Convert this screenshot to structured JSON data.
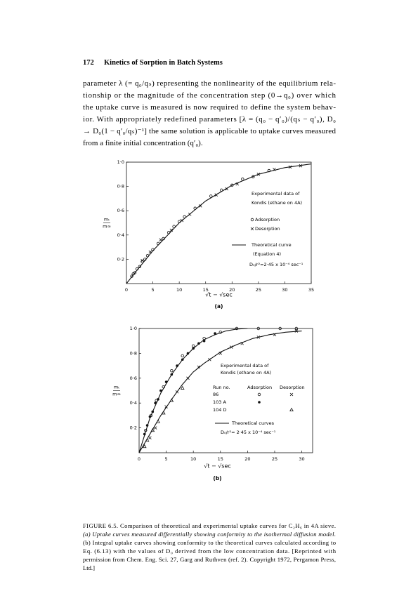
{
  "header": {
    "page_number": "172",
    "running_title": "Kinetics of Sorption in Batch Systems"
  },
  "body": {
    "lines": [
      "parameter λ (= q₀/qₛ) representing the nonlinearity of the equilibrium rela-",
      "tionship or the magnitude of the concentration step (0→q₀) over which",
      "the uptake curve is measured is now required to define the system behav-",
      "ior. With appropriately redefined parameters [λ = (q₀ − q′₀)/(qₛ − q′₀), D₀",
      "→ D₀(1 − q′₀/qₛ)⁻¹] the same solution is applicable to uptake curves measured",
      "from a finite initial concentration (q′₀)."
    ]
  },
  "chart_data": [
    {
      "type": "scatter",
      "panel_label": "(a)",
      "x_label": "√t − √sec",
      "y_label": {
        "top": "mₜ",
        "bottom": "m∞"
      },
      "xlim": [
        0,
        35
      ],
      "ylim": [
        0,
        1.0
      ],
      "xticks": [
        0,
        5,
        10,
        15,
        20,
        25,
        30,
        35
      ],
      "yticks": [
        {
          "value": 0.2,
          "label": "0·2"
        },
        {
          "value": 0.4,
          "label": "0·4"
        },
        {
          "value": 0.6,
          "label": "0·6"
        },
        {
          "value": 0.8,
          "label": "0·8"
        },
        {
          "value": 1.0,
          "label": "1·0"
        }
      ],
      "series": [
        {
          "marker": "circle",
          "x": [
            1,
            1.3,
            1.6,
            2,
            2.5,
            3,
            3.5,
            4,
            5,
            6,
            7,
            8,
            9,
            10,
            11,
            13,
            16,
            18,
            20,
            22,
            24,
            27
          ],
          "values": [
            0.06,
            0.08,
            0.09,
            0.12,
            0.14,
            0.18,
            0.2,
            0.23,
            0.28,
            0.33,
            0.37,
            0.42,
            0.47,
            0.51,
            0.55,
            0.62,
            0.72,
            0.77,
            0.81,
            0.86,
            0.88,
            0.93
          ]
        },
        {
          "marker": "cross",
          "x": [
            3,
            4.5,
            6.5,
            8.5,
            10.5,
            12,
            14,
            17,
            19,
            21,
            25,
            28,
            31,
            33
          ],
          "values": [
            0.19,
            0.26,
            0.36,
            0.44,
            0.52,
            0.57,
            0.64,
            0.73,
            0.78,
            0.82,
            0.9,
            0.94,
            0.96,
            0.97
          ]
        },
        {
          "marker": "line",
          "x": [
            0,
            2,
            5,
            10,
            15,
            20,
            25,
            30,
            35
          ],
          "values": [
            0,
            0.11,
            0.27,
            0.5,
            0.68,
            0.81,
            0.9,
            0.955,
            0.985
          ]
        }
      ],
      "legend": {
        "title": [
          "Experimental data of",
          "Kondis (ethane on 4A)"
        ],
        "entries": [
          "Adsorption",
          "Desorption"
        ],
        "curve_label": "Theoretical curve",
        "curve_note": "(Equation 4)",
        "note": "D₀/r²=2·45 x 10⁻⁴ sec⁻¹"
      }
    },
    {
      "type": "scatter",
      "panel_label": "(b)",
      "x_label": "√t − √sec",
      "y_label": {
        "top": "mₜ",
        "bottom": "m∞"
      },
      "xlim": [
        0,
        32
      ],
      "ylim": [
        0,
        1.0
      ],
      "xticks": [
        0,
        5,
        10,
        15,
        20,
        25,
        30
      ],
      "yticks": [
        {
          "value": 0.2,
          "label": "0·2"
        },
        {
          "value": 0.4,
          "label": "0·4"
        },
        {
          "value": 0.6,
          "label": "0·6"
        },
        {
          "value": 0.8,
          "label": "0·8"
        },
        {
          "value": 1.0,
          "label": "1·0"
        }
      ],
      "series": [
        {
          "marker": "dot",
          "x": [
            1,
            1.5,
            2,
            2.5,
            3,
            3.5,
            4,
            5,
            6,
            7,
            8,
            9,
            10,
            11,
            12,
            14
          ],
          "values": [
            0.15,
            0.22,
            0.29,
            0.33,
            0.4,
            0.43,
            0.5,
            0.57,
            0.63,
            0.7,
            0.75,
            0.8,
            0.84,
            0.88,
            0.9,
            0.96
          ]
        },
        {
          "marker": "circle",
          "x": [
            1.2,
            2.2,
            3.2,
            4.5,
            6,
            8,
            10,
            12,
            15,
            18,
            22,
            26,
            29
          ],
          "values": [
            0.18,
            0.3,
            0.42,
            0.53,
            0.66,
            0.78,
            0.86,
            0.92,
            0.97,
            1.0,
            1.0,
            1.0,
            1.0
          ]
        },
        {
          "marker": "cross",
          "x": [
            2,
            3,
            5,
            7,
            9,
            11,
            13,
            15,
            17,
            19,
            22,
            25,
            29
          ],
          "values": [
            0.12,
            0.2,
            0.37,
            0.49,
            0.6,
            0.69,
            0.75,
            0.8,
            0.85,
            0.88,
            0.93,
            0.95,
            0.98
          ]
        },
        {
          "marker": "triangle",
          "x": [
            1,
            1.5,
            2.5,
            3.5,
            4.5,
            6,
            8
          ],
          "values": [
            0.05,
            0.1,
            0.18,
            0.25,
            0.32,
            0.42,
            0.52
          ]
        },
        {
          "marker": "line",
          "x": [
            0,
            2,
            4,
            6,
            8,
            10,
            12,
            14,
            16,
            18,
            20
          ],
          "values": [
            0,
            0.28,
            0.48,
            0.63,
            0.75,
            0.84,
            0.91,
            0.95,
            0.98,
            0.995,
            1.0
          ]
        },
        {
          "marker": "line",
          "x": [
            0,
            2,
            4,
            6,
            8,
            10,
            12,
            15,
            18,
            21,
            24,
            27,
            30
          ],
          "values": [
            0,
            0.15,
            0.3,
            0.43,
            0.55,
            0.65,
            0.72,
            0.81,
            0.87,
            0.92,
            0.95,
            0.97,
            0.98
          ]
        }
      ],
      "legend": {
        "title": [
          "Experimental data of",
          "Kondis (ethane on 4A)"
        ],
        "columns": [
          "Run no.",
          "Adsorption",
          "Desorption"
        ],
        "runs": [
          "86",
          "103 A",
          "104 D"
        ],
        "curve_label": "Theoretical curves",
        "note": "D₀/r²= 2·45 x 10⁻⁴ sec⁻¹"
      }
    }
  ],
  "caption": {
    "lines": [
      "FIGURE 6.5. Comparison of theoretical and experimental uptake curves for C₂H₆ in 4A sieve.",
      "(a) Uptake curves measured differentially showing conformity to the isothermal diffusion model.",
      "(b) Integral uptake curves showing conformity to the theoretical curves calculated according to",
      "Eq. (6.13) with the values of D₀ derived from the low concentration data. [Reprinted with",
      "permission from Chem. Eng. Sci. 27, Garg and Ruthven (ref. 2). Copyright 1972, Pergamon Press,",
      "Ltd.]"
    ]
  }
}
